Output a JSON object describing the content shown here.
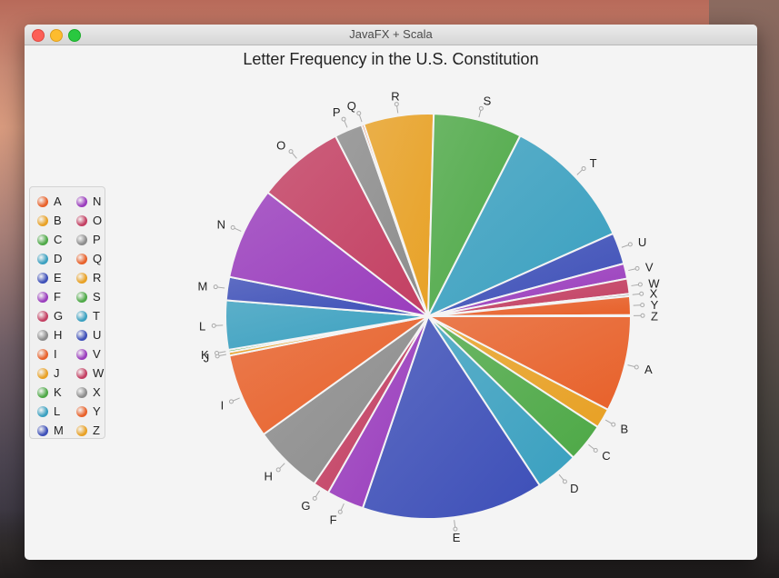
{
  "window": {
    "title": "JavaFX + Scala"
  },
  "chart_data": {
    "type": "pie",
    "title": "Letter Frequency in the U.S. Constitution",
    "categories": [
      "A",
      "B",
      "C",
      "D",
      "E",
      "F",
      "G",
      "H",
      "I",
      "J",
      "K",
      "L",
      "M",
      "N",
      "O",
      "P",
      "Q",
      "R",
      "S",
      "T",
      "U",
      "V",
      "W",
      "X",
      "Y",
      "Z"
    ],
    "values": [
      8.2,
      1.7,
      3.3,
      3.7,
      15.6,
      3.2,
      1.4,
      6.0,
      7.3,
      0.3,
      0.2,
      4.2,
      2.0,
      7.9,
      7.5,
      2.4,
      0.2,
      6.0,
      7.6,
      11.6,
      2.7,
      1.3,
      1.3,
      0.2,
      1.6,
      0.1
    ],
    "colors": [
      "#e8612a",
      "#e8a125",
      "#4ea947",
      "#3aa0c0",
      "#3d4fb8",
      "#9a3dbd",
      "#c33f62",
      "#8c8c8c",
      "#e8612a",
      "#e8a125",
      "#4ea947",
      "#3aa0c0",
      "#3d4fb8",
      "#9a3dbd",
      "#c33f62",
      "#8c8c8c",
      "#e8612a",
      "#e8a125",
      "#4ea947",
      "#3aa0c0",
      "#3d4fb8",
      "#9a3dbd",
      "#c33f62",
      "#8c8c8c",
      "#e8612a",
      "#e8a125"
    ],
    "start_angle_deg": 0,
    "direction": "clockwise",
    "legend_position": "left"
  }
}
